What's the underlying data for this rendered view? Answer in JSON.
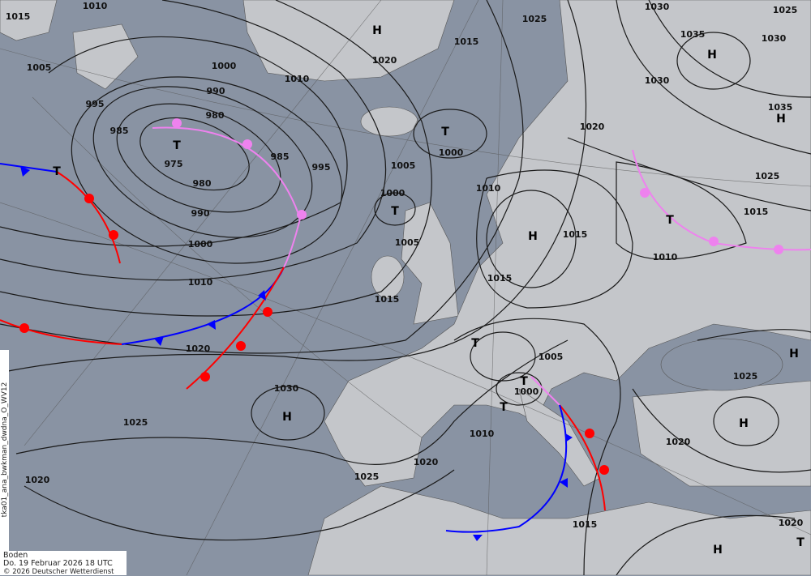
{
  "map": {
    "product_code": "tka01_ana_bwkman_dwdna_O_WV12",
    "level": "Boden",
    "valid_time": "Do. 19 Februar 2026 18 UTC",
    "copyright": "© 2026 Deutscher Wetterdienst",
    "colors": {
      "sea": "#8993a3",
      "land": "#c4c6ca",
      "isobar": "#1a1a1a",
      "cold_front": "#0000ff",
      "warm_front": "#ff0000",
      "occlusion": "#ee82ee"
    },
    "pressure_systems": [
      {
        "type": "H",
        "label": "H"
      },
      {
        "type": "T",
        "label": "T"
      },
      {
        "type": "T",
        "label": "T"
      },
      {
        "type": "T",
        "label": "T"
      },
      {
        "type": "T",
        "label": "T"
      },
      {
        "type": "H",
        "label": "H"
      },
      {
        "type": "H",
        "label": "H"
      },
      {
        "type": "H",
        "label": "H"
      },
      {
        "type": "T",
        "label": "T"
      },
      {
        "type": "H",
        "label": "H"
      },
      {
        "type": "T",
        "label": "T"
      },
      {
        "type": "T",
        "label": "T"
      },
      {
        "type": "T",
        "label": "T"
      },
      {
        "type": "H",
        "label": "H"
      },
      {
        "type": "H",
        "label": "H"
      },
      {
        "type": "H",
        "label": "H"
      },
      {
        "type": "T",
        "label": "T"
      }
    ],
    "isobar_labels": [
      "1015",
      "1010",
      "1005",
      "995",
      "985",
      "975",
      "980",
      "980",
      "990",
      "990",
      "1000",
      "1000",
      "1010",
      "985",
      "995",
      "1010",
      "1020",
      "1015",
      "1025",
      "1000",
      "1005",
      "1000",
      "1005",
      "1015",
      "1010",
      "1020",
      "1015",
      "1015",
      "1005",
      "1000",
      "1010",
      "1020",
      "1025",
      "1030",
      "1020",
      "1025",
      "1020",
      "1015",
      "1020",
      "1025",
      "1010",
      "1015",
      "1025",
      "1035",
      "1030",
      "1035",
      "1030",
      "1030",
      "1025",
      "1020"
    ]
  }
}
